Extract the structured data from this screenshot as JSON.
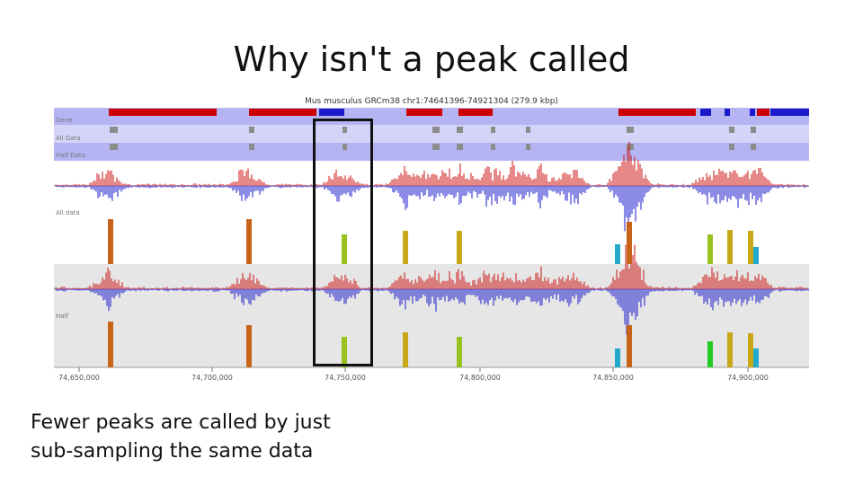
{
  "slide": {
    "title": "Why isn't a peak called",
    "caption_lines": [
      "Fewer peaks are called by just",
      "sub-sampling the same data"
    ]
  },
  "browser": {
    "header": "Mus musculus GRCm38 chr1:74641396-74921304 (279.9 kbp)",
    "track_labels": {
      "genes": "Gene",
      "all_data": "All Data",
      "half_data": "Half Data",
      "all_signal": "All data",
      "half_signal": "Half"
    },
    "axis_ticks": [
      "74,650,000",
      "74,700,000",
      "74,750,000",
      "74,800,000",
      "74,850,000",
      "74,900,000"
    ]
  },
  "colors": {
    "gene_red": "#cc0000",
    "gene_blue": "#1a1acc",
    "track_band": "#b4b4f2",
    "track_band_light": "#d4d4f8",
    "signal_red": "#cc1111",
    "signal_blue": "#1a1acc",
    "peak_orange": "#c8641a",
    "peak_yellow": "#c8a818",
    "peak_lime": "#99c21e",
    "peak_green": "#22cc22",
    "peak_cyan": "#22aacc",
    "highlight_border": "#111111"
  }
}
